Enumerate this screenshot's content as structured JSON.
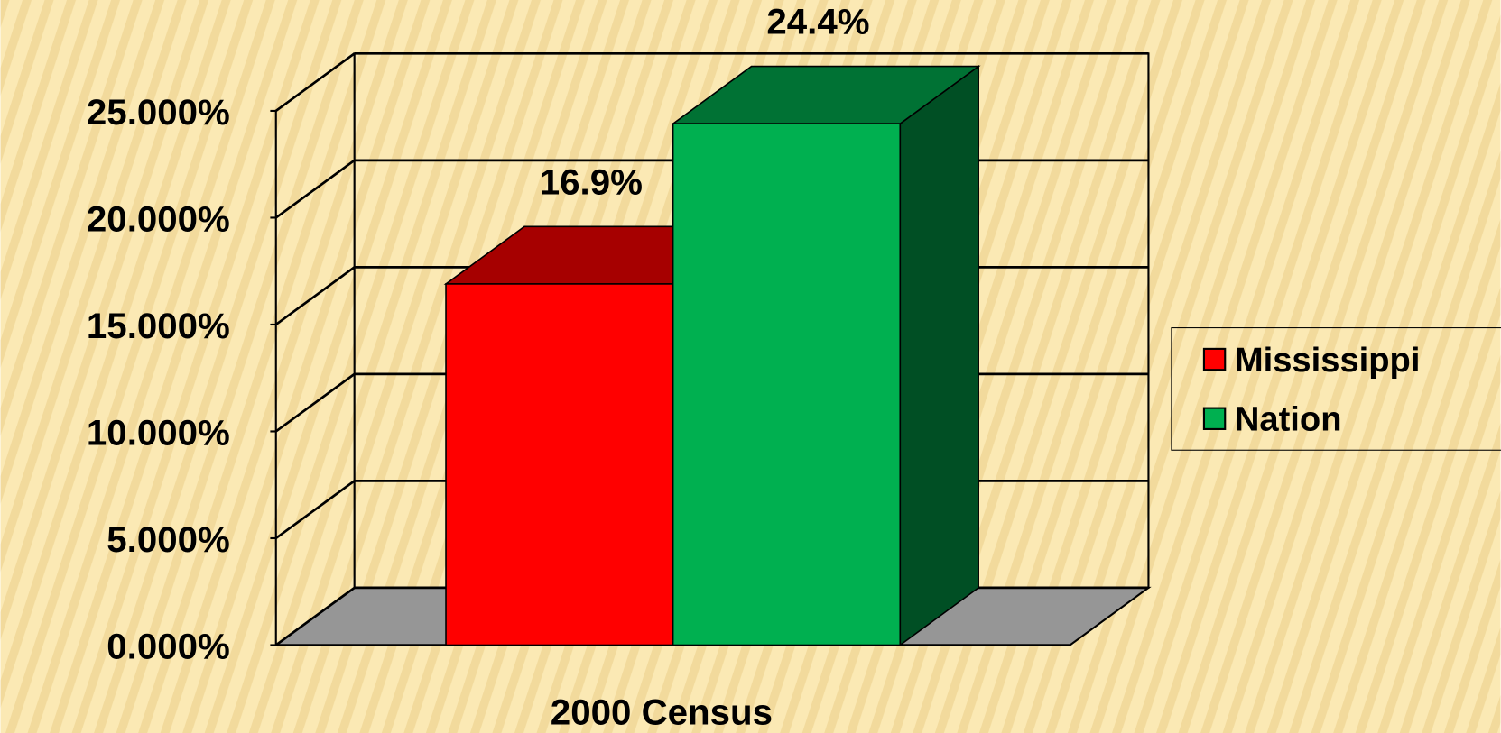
{
  "chart_data": {
    "type": "bar3d",
    "categories": [
      "2000 Census"
    ],
    "series": [
      {
        "name": "Mississippi",
        "color": "#ff0000",
        "values": [
          16.9
        ],
        "value_labels": [
          "16.9%"
        ]
      },
      {
        "name": "Nation",
        "color": "#00b050",
        "values": [
          24.4
        ],
        "value_labels": [
          "24.4%"
        ]
      }
    ],
    "ylim": [
      0,
      25
    ],
    "yticks": [
      {
        "value": 0,
        "label": "0.000%"
      },
      {
        "value": 5,
        "label": "5.000%"
      },
      {
        "value": 10,
        "label": "10.000%"
      },
      {
        "value": 15,
        "label": "15.000%"
      },
      {
        "value": 20,
        "label": "20.000%"
      },
      {
        "value": 25,
        "label": "25.000%"
      }
    ],
    "grid": true
  }
}
